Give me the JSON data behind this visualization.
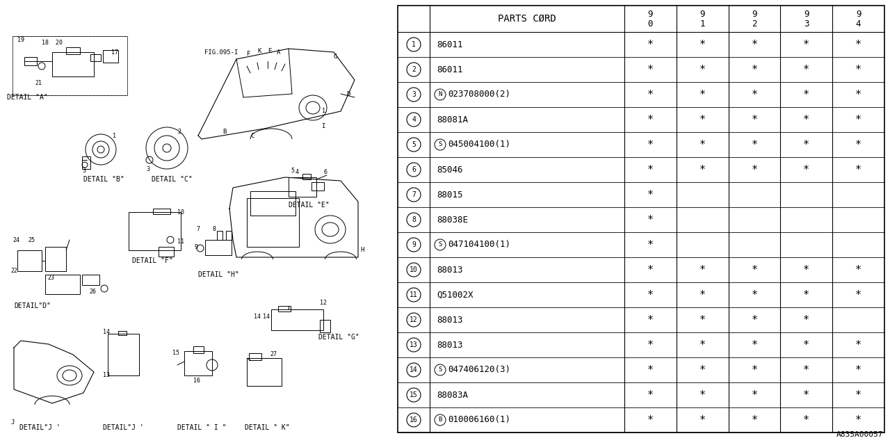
{
  "ref_code": "A835A00057",
  "fig_ref": "FIG.095-I",
  "table": {
    "header_col": "PARTS CØRD",
    "year_cols": [
      "9\n0",
      "9\n1",
      "9\n2",
      "9\n3",
      "9\n4"
    ],
    "rows": [
      {
        "num": "1",
        "prefix": "",
        "code": "86011",
        "marks": [
          true,
          true,
          true,
          true,
          true
        ]
      },
      {
        "num": "2",
        "prefix": "",
        "code": "86011",
        "marks": [
          true,
          true,
          true,
          true,
          true
        ]
      },
      {
        "num": "3",
        "prefix": "N",
        "code": "023708000(2)",
        "marks": [
          true,
          true,
          true,
          true,
          true
        ]
      },
      {
        "num": "4",
        "prefix": "",
        "code": "88081A",
        "marks": [
          true,
          true,
          true,
          true,
          true
        ]
      },
      {
        "num": "5",
        "prefix": "S",
        "code": "045004100(1)",
        "marks": [
          true,
          true,
          true,
          true,
          true
        ]
      },
      {
        "num": "6",
        "prefix": "",
        "code": "85046",
        "marks": [
          true,
          true,
          true,
          true,
          true
        ]
      },
      {
        "num": "7",
        "prefix": "",
        "code": "88015",
        "marks": [
          true,
          false,
          false,
          false,
          false
        ]
      },
      {
        "num": "8",
        "prefix": "",
        "code": "88038E",
        "marks": [
          true,
          false,
          false,
          false,
          false
        ]
      },
      {
        "num": "9",
        "prefix": "S",
        "code": "047104100(1)",
        "marks": [
          true,
          false,
          false,
          false,
          false
        ]
      },
      {
        "num": "10",
        "prefix": "",
        "code": "88013",
        "marks": [
          true,
          true,
          true,
          true,
          true
        ]
      },
      {
        "num": "11",
        "prefix": "",
        "code": "Q51002X",
        "marks": [
          true,
          true,
          true,
          true,
          true
        ]
      },
      {
        "num": "12",
        "prefix": "",
        "code": "88013",
        "marks": [
          true,
          true,
          true,
          true,
          false
        ]
      },
      {
        "num": "13",
        "prefix": "",
        "code": "88013",
        "marks": [
          true,
          true,
          true,
          true,
          true
        ]
      },
      {
        "num": "14",
        "prefix": "S",
        "code": "047406120(3)",
        "marks": [
          true,
          true,
          true,
          true,
          true
        ]
      },
      {
        "num": "15",
        "prefix": "",
        "code": "88083A",
        "marks": [
          true,
          true,
          true,
          true,
          true
        ]
      },
      {
        "num": "16",
        "prefix": "B",
        "code": "010006160(1)",
        "marks": [
          true,
          true,
          true,
          true,
          true
        ]
      }
    ]
  },
  "bg_color": "#ffffff"
}
